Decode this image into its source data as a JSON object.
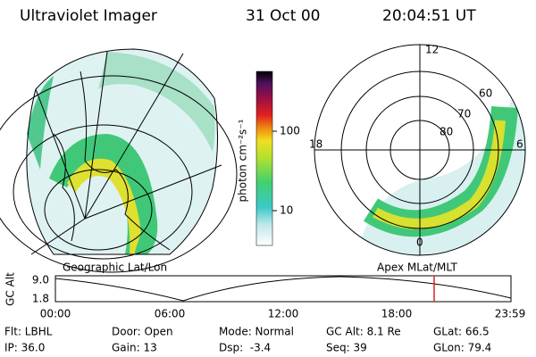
{
  "header": {
    "instrument": "Ultraviolet Imager",
    "date": "31 Oct 00",
    "time": "20:04:51 UT"
  },
  "colorbar": {
    "label": "photon cm⁻²s⁻¹",
    "ticks": [
      "100",
      "10"
    ]
  },
  "polar": {
    "mlt_labels": [
      "12",
      "18",
      "6",
      "0"
    ],
    "lat_labels": [
      "60",
      "70",
      "80"
    ]
  },
  "altitude_plot": {
    "left_title": "Geographic Lat/Lon",
    "right_title": "Apex MLat/MLT",
    "y_label": "GC Alt",
    "y_ticks": [
      "9.0",
      "1.8"
    ],
    "x_ticks": [
      "00:00",
      "06:00",
      "12:00",
      "18:00",
      "23:59"
    ]
  },
  "info": {
    "rows": [
      [
        "Flt: LBHL",
        "Door: Open",
        "Mode: Normal",
        "GC Alt: 8.1 Re",
        "GLat: 66.5"
      ],
      [
        "IP: 36.0",
        "Gain: 13",
        "Dsp:  -3.4",
        "Seq: 39",
        "GLon: 79.4"
      ]
    ]
  }
}
